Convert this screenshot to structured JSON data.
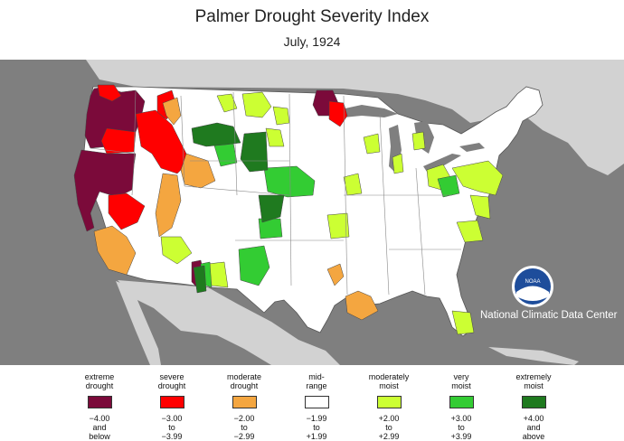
{
  "title": "Palmer Drought Severity Index",
  "subtitle": "July, 1924",
  "logo_text": "NOAA",
  "credit": "National Climatic Data Center",
  "colors": {
    "extreme_drought": "#7b0a3a",
    "severe_drought": "#ff0000",
    "moderate_drought": "#f4a640",
    "mid_range": "#ffffff",
    "moderately_moist": "#ccff33",
    "very_moist": "#33cc33",
    "extremely_moist": "#1f7a1f",
    "outside": "#7f7f7f",
    "water": "#7f7f7f",
    "other_land": "#d2d2d2"
  },
  "legend": [
    {
      "label1": "extreme",
      "label2": "drought",
      "range1": "−4.00",
      "range2": "and",
      "range3": "below",
      "color": "#7b0a3a"
    },
    {
      "label1": "severe",
      "label2": "drought",
      "range1": "−3.00",
      "range2": "to",
      "range3": "−3.99",
      "color": "#ff0000"
    },
    {
      "label1": "moderate",
      "label2": "drought",
      "range1": "−2.00",
      "range2": "to",
      "range3": "−2.99",
      "color": "#f4a640"
    },
    {
      "label1": "mid-",
      "label2": "range",
      "range1": "−1.99",
      "range2": "to",
      "range3": "+1.99",
      "color": "#ffffff"
    },
    {
      "label1": "moderately",
      "label2": "moist",
      "range1": "+2.00",
      "range2": "to",
      "range3": "+2.99",
      "color": "#ccff33"
    },
    {
      "label1": "very",
      "label2": "moist",
      "range1": "+3.00",
      "range2": "to",
      "range3": "+3.99",
      "color": "#33cc33"
    },
    {
      "label1": "extremely",
      "label2": "moist",
      "range1": "+4.00",
      "range2": "and",
      "range3": "above",
      "color": "#1f7a1f"
    }
  ]
}
